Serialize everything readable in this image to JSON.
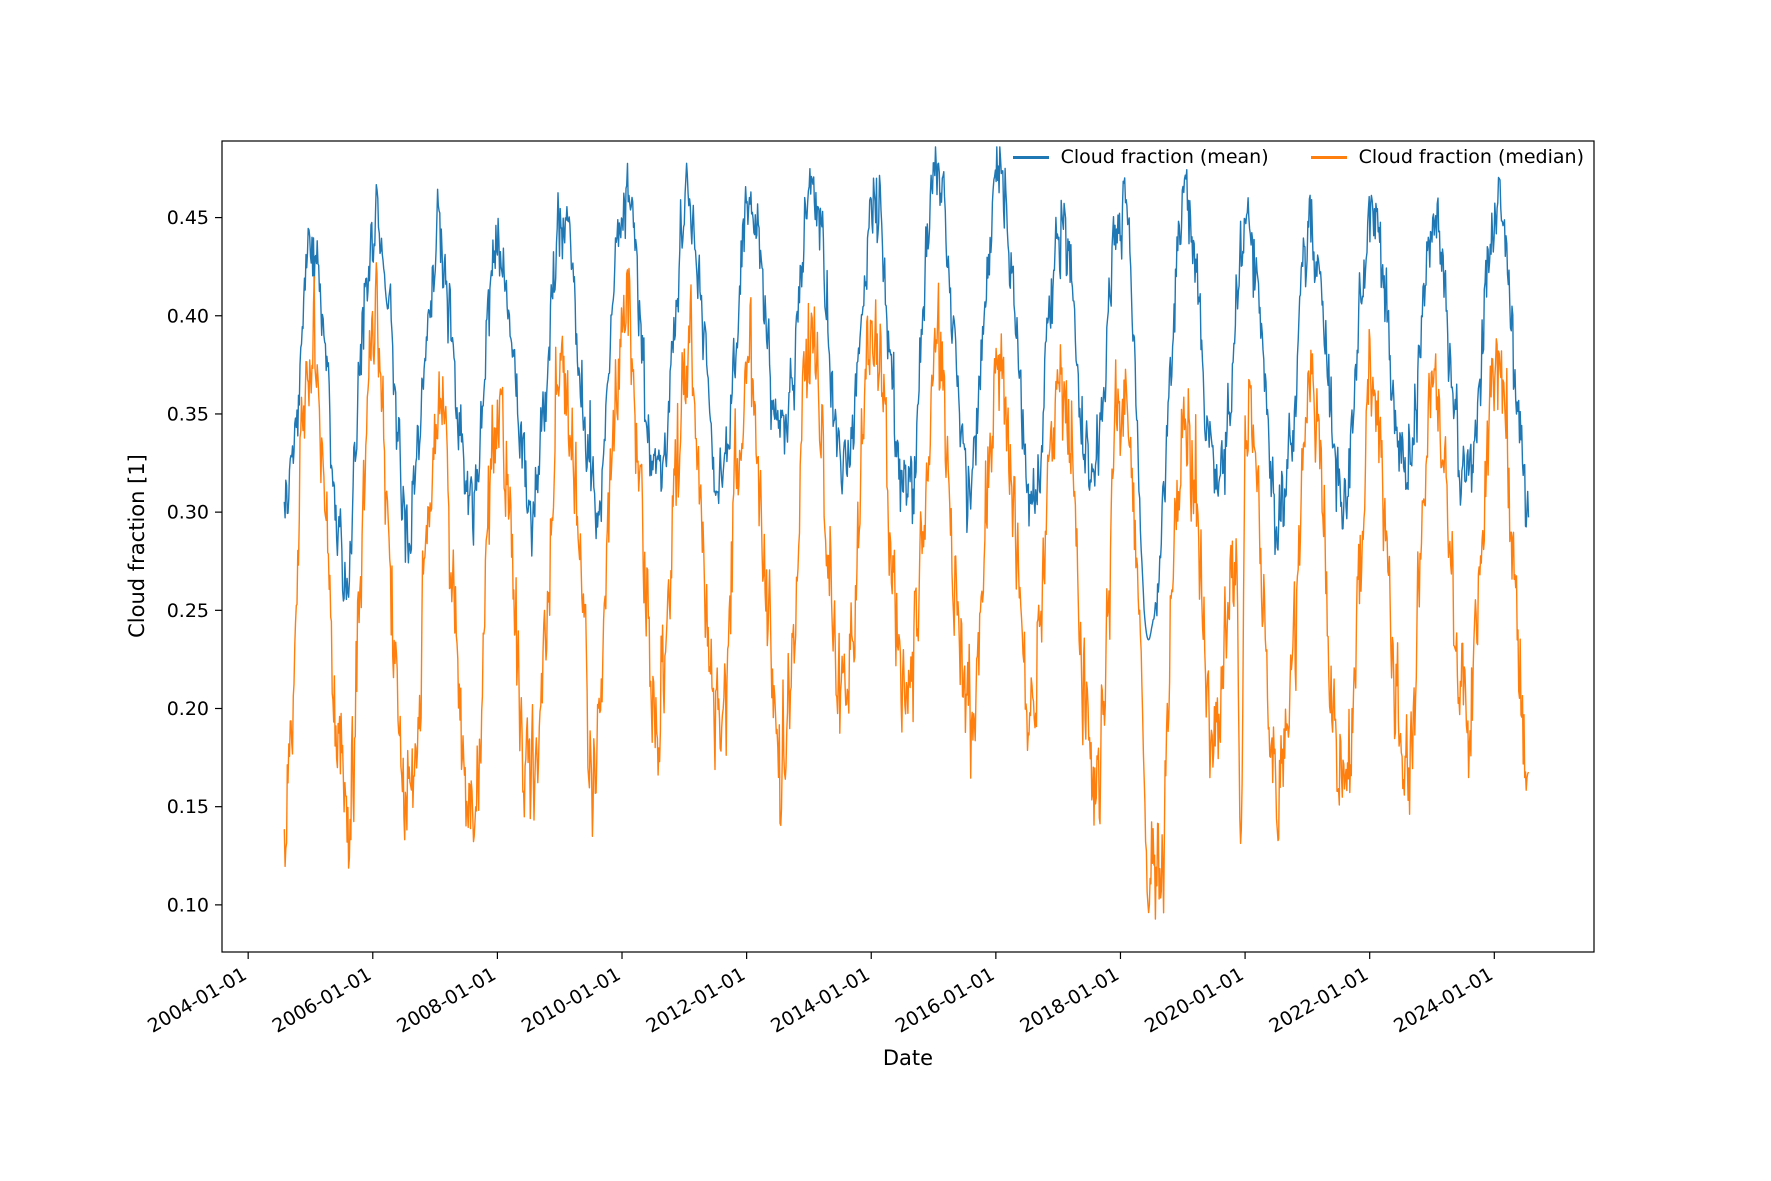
{
  "figure": {
    "background_color": "#ffffff"
  },
  "chart_data": {
    "type": "line",
    "title": "",
    "xlabel": "Date",
    "ylabel": "Cloud fraction [1]",
    "grid": false,
    "legend": {
      "position": "upper right",
      "columns": 2,
      "entries": [
        "Cloud fraction (mean)",
        "Cloud fraction (median)"
      ]
    },
    "x_unit": "decimal_year",
    "x_tick_labels": [
      "2004-01-01",
      "2006-01-01",
      "2008-01-01",
      "2010-01-01",
      "2012-01-01",
      "2014-01-01",
      "2016-01-01",
      "2018-01-01",
      "2020-01-01",
      "2022-01-01",
      "2024-01-01"
    ],
    "x_tick_values": [
      2004,
      2006,
      2008,
      2010,
      2012,
      2014,
      2016,
      2018,
      2020,
      2022,
      2024
    ],
    "x_tick_rotation_deg": 30,
    "y_tick_labels": [
      "0.10",
      "0.15",
      "0.20",
      "0.25",
      "0.30",
      "0.35",
      "0.40",
      "0.45"
    ],
    "y_tick_values": [
      0.1,
      0.15,
      0.2,
      0.25,
      0.3,
      0.35,
      0.4,
      0.45
    ],
    "xlim": [
      2003.58,
      2025.6
    ],
    "ylim": [
      0.076,
      0.489
    ],
    "seasonality": {
      "years_start": 2004,
      "peak_phase": 0.04,
      "trough_phase": 0.58,
      "sample_step_years": 0.012
    },
    "series": [
      {
        "name": "Cloud fraction (mean)",
        "color": "#1f77b4",
        "start": 2004.58,
        "end": 2024.55,
        "noise_amp": 0.009,
        "peaks_by_year": [
          0.42,
          0.43,
          0.44,
          0.42,
          0.43,
          0.45,
          0.462,
          0.455,
          0.46,
          0.465,
          0.46,
          0.462,
          0.465,
          0.452,
          0.462,
          0.458,
          0.445,
          0.458,
          0.448,
          0.452,
          0.465,
          0.455
        ],
        "troughs_by_year": [
          0.3,
          0.295,
          0.29,
          0.3,
          0.3,
          0.305,
          0.315,
          0.32,
          0.315,
          0.32,
          0.33,
          0.31,
          0.31,
          0.32,
          0.29,
          0.305,
          0.29,
          0.31,
          0.31,
          0.3,
          0.29,
          0.3
        ],
        "anomalies": [
          {
            "t": 2006.06,
            "value": 0.468,
            "width": 0.05
          },
          {
            "t": 2018.45,
            "value": 0.235,
            "width": 0.35
          }
        ]
      },
      {
        "name": "Cloud fraction (median)",
        "color": "#ff7f0e",
        "start": 2004.58,
        "end": 2024.55,
        "noise_amp": 0.014,
        "peaks_by_year": [
          0.35,
          0.36,
          0.37,
          0.34,
          0.335,
          0.375,
          0.398,
          0.37,
          0.37,
          0.385,
          0.393,
          0.39,
          0.383,
          0.378,
          0.375,
          0.36,
          0.358,
          0.35,
          0.363,
          0.368,
          0.374,
          0.36
        ],
        "troughs_by_year": [
          0.145,
          0.145,
          0.16,
          0.15,
          0.155,
          0.165,
          0.185,
          0.19,
          0.17,
          0.19,
          0.19,
          0.19,
          0.185,
          0.19,
          0.105,
          0.19,
          0.165,
          0.17,
          0.18,
          0.17,
          0.16,
          0.17
        ],
        "anomalies": [
          {
            "t": 2006.06,
            "value": 0.428,
            "width": 0.04
          },
          {
            "t": 2018.45,
            "value": 0.096,
            "width": 0.07
          },
          {
            "t": 2019.93,
            "value": 0.131,
            "width": 0.1
          }
        ]
      }
    ]
  }
}
